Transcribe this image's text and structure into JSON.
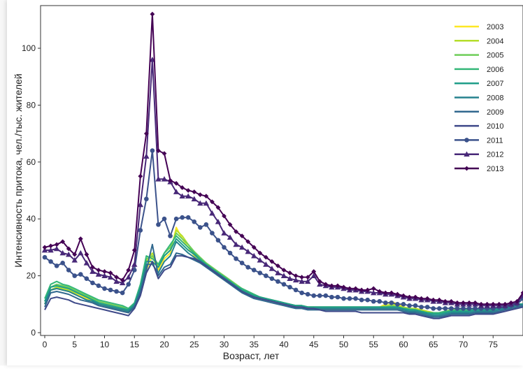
{
  "chart_data": {
    "type": "line",
    "title": "",
    "xlabel": "Возраст, лет",
    "ylabel": "Интенсивность притока, чел./тыс. жителей",
    "xlim": [
      0,
      80
    ],
    "ylim": [
      0,
      115
    ],
    "xticks": [
      0,
      5,
      10,
      15,
      20,
      25,
      30,
      35,
      40,
      45,
      50,
      55,
      60,
      65,
      70,
      75
    ],
    "yticks": [
      0,
      20,
      40,
      60,
      80,
      100
    ],
    "grid": false,
    "legend": "top-right",
    "x": [
      0,
      1,
      2,
      3,
      4,
      5,
      6,
      7,
      8,
      9,
      10,
      11,
      12,
      13,
      14,
      15,
      16,
      17,
      18,
      19,
      20,
      21,
      22,
      23,
      24,
      25,
      26,
      27,
      28,
      29,
      30,
      31,
      32,
      33,
      34,
      35,
      36,
      37,
      38,
      39,
      40,
      41,
      42,
      43,
      44,
      45,
      46,
      47,
      48,
      49,
      50,
      51,
      52,
      53,
      54,
      55,
      56,
      57,
      58,
      59,
      60,
      61,
      62,
      63,
      64,
      65,
      66,
      67,
      68,
      69,
      70,
      71,
      72,
      73,
      74,
      75,
      76,
      77,
      78,
      79,
      80
    ],
    "series": [
      {
        "name": "2003",
        "color": "#fde725",
        "marker": "none",
        "values": [
          10,
          15,
          15.5,
          15,
          14.5,
          13.5,
          13,
          12,
          11,
          10,
          9.5,
          9,
          8.5,
          8,
          7,
          9,
          14,
          22,
          27,
          22,
          26,
          28,
          37,
          33,
          30,
          27,
          25,
          23.5,
          22,
          20,
          19,
          17.5,
          16,
          15,
          14,
          13,
          12.5,
          12,
          11.5,
          11,
          10.5,
          10,
          9.5,
          9.5,
          9,
          9,
          8.5,
          8.5,
          8.5,
          8.5,
          8.5,
          8.5,
          8.5,
          8.5,
          8.5,
          8.5,
          9,
          10,
          11,
          10,
          9,
          8.5,
          8.5,
          8,
          7.5,
          7,
          7,
          7.5,
          8,
          8,
          8,
          8,
          8,
          8,
          8,
          8,
          8.5,
          9,
          9.5,
          10,
          10
        ]
      },
      {
        "name": "2004",
        "color": "#b5de2b",
        "marker": "none",
        "values": [
          10,
          15,
          16,
          15.5,
          15,
          14,
          13.5,
          12.5,
          11.5,
          10.5,
          10,
          9.5,
          9,
          8.5,
          7.5,
          9,
          15,
          25,
          28,
          23,
          27,
          29,
          36,
          34,
          31,
          28,
          26,
          24,
          22.5,
          21,
          19.5,
          18,
          16.5,
          15,
          14,
          13,
          12.5,
          12,
          11.5,
          11,
          10.5,
          10,
          9.5,
          9.5,
          9,
          9,
          9,
          9,
          9,
          9,
          9,
          9,
          9,
          9,
          9,
          9,
          9,
          9.5,
          10,
          9.5,
          9,
          8.5,
          8.5,
          8,
          7.5,
          7,
          7,
          7.5,
          8,
          8,
          8,
          8,
          8,
          8,
          8,
          8,
          8.5,
          9,
          9.5,
          10,
          10
        ]
      },
      {
        "name": "2005",
        "color": "#6ece58",
        "marker": "none",
        "values": [
          11,
          16,
          17,
          16.5,
          16,
          15,
          14,
          13,
          12,
          11,
          10.5,
          10,
          9.5,
          9,
          8,
          10,
          16,
          26,
          27,
          24,
          28,
          30,
          35,
          33,
          31,
          28.5,
          26.5,
          24.5,
          23,
          21.5,
          20,
          18.5,
          17,
          15.5,
          14.5,
          13.5,
          12.5,
          12,
          11.5,
          11,
          10.5,
          10,
          9.5,
          9.5,
          9,
          9,
          9,
          9,
          9,
          9,
          9,
          9,
          9,
          9,
          9,
          9,
          9,
          9,
          9.5,
          9,
          8.5,
          8.5,
          8,
          7.5,
          7,
          7,
          7,
          7.5,
          8,
          8,
          8,
          8,
          8,
          8,
          8,
          8,
          8.5,
          9,
          9.5,
          10,
          10
        ]
      },
      {
        "name": "2006",
        "color": "#35b779",
        "marker": "none",
        "values": [
          12,
          17,
          18,
          17,
          16.5,
          15.5,
          14.5,
          13.5,
          12.5,
          11.5,
          11,
          10.5,
          10,
          9.5,
          8.5,
          10.5,
          17,
          27,
          26,
          24,
          28,
          31,
          34,
          32,
          30,
          28,
          26,
          24,
          22.5,
          21,
          19.5,
          18,
          16.5,
          15.5,
          14.5,
          13.5,
          12.5,
          12,
          11.5,
          11,
          10.5,
          10,
          9.5,
          9.5,
          9,
          9,
          9,
          9,
          9,
          9,
          9,
          9,
          9,
          9,
          9,
          9,
          9,
          9,
          9,
          9,
          8.5,
          8,
          8,
          7.5,
          7,
          7,
          7,
          7.5,
          7.5,
          8,
          8,
          8,
          8,
          8,
          8,
          8.5,
          8.5,
          9,
          9.5,
          10,
          10
        ]
      },
      {
        "name": "2007",
        "color": "#1f9e89",
        "marker": "none",
        "values": [
          11,
          16,
          16.5,
          16,
          15.5,
          14.5,
          13.5,
          12.5,
          11.5,
          10.5,
          10,
          9.5,
          9,
          8.5,
          8,
          10,
          16,
          25,
          25,
          23,
          27,
          29,
          33,
          31,
          29,
          27.5,
          25.5,
          24,
          22.5,
          21,
          19.5,
          18,
          16.5,
          15,
          14,
          13,
          12.5,
          12,
          11.5,
          11,
          10.5,
          10,
          9.5,
          9.5,
          9,
          9,
          9,
          9,
          9,
          9,
          9,
          9,
          9,
          9,
          9,
          9,
          9,
          9,
          9,
          9,
          8.5,
          8,
          8,
          7.5,
          7,
          6.5,
          6.5,
          7,
          7.5,
          7.5,
          7.5,
          7.5,
          8,
          8,
          8,
          8,
          8.5,
          9,
          9.5,
          10,
          10
        ]
      },
      {
        "name": "2008",
        "color": "#26828e",
        "marker": "none",
        "values": [
          10,
          15,
          15.5,
          15,
          14.5,
          13.5,
          12.5,
          11.5,
          11,
          10,
          9.5,
          9,
          8.5,
          8,
          7.5,
          9.5,
          15,
          24,
          24,
          21,
          25,
          27,
          32,
          30,
          28,
          26.5,
          25,
          23.5,
          22,
          20.5,
          19,
          17.5,
          16,
          14.5,
          13.5,
          12.5,
          12,
          11.5,
          11,
          10.5,
          10,
          9.5,
          9,
          9,
          8.5,
          8.5,
          8.5,
          8.5,
          8.5,
          8.5,
          8.5,
          8.5,
          8.5,
          8.5,
          8.5,
          8.5,
          8.5,
          8.5,
          8.5,
          8.5,
          8,
          7.5,
          7.5,
          7,
          6.5,
          6,
          6,
          6.5,
          7,
          7,
          7,
          7,
          7.5,
          7.5,
          7.5,
          7.5,
          8,
          8.5,
          9,
          9.5,
          10
        ]
      },
      {
        "name": "2009",
        "color": "#31688e",
        "marker": "none",
        "values": [
          9,
          14,
          14.5,
          14,
          13.5,
          12.5,
          11.5,
          11,
          10.5,
          9.5,
          9,
          8.5,
          8,
          7.5,
          7,
          9,
          14,
          22,
          31,
          20,
          23,
          24,
          28,
          27.5,
          26.5,
          25.5,
          24.5,
          23,
          21.5,
          20,
          18.5,
          17,
          15.5,
          14,
          13,
          12,
          11.5,
          11,
          10.5,
          10,
          9.5,
          9,
          8.5,
          8.5,
          8,
          8,
          8,
          8,
          8,
          8,
          8,
          8,
          8,
          8,
          8,
          8,
          8,
          8,
          8,
          8,
          7.5,
          7,
          7,
          6.5,
          6,
          5.5,
          5.5,
          6,
          6.5,
          6.5,
          6.5,
          6.5,
          7,
          7,
          7,
          7,
          7.5,
          8,
          8.5,
          9,
          9.5
        ]
      },
      {
        "name": "2010",
        "color": "#3e4989",
        "marker": "none",
        "values": [
          8,
          12,
          12.5,
          12,
          11.5,
          10.5,
          10,
          9.5,
          9,
          8.5,
          8,
          7.5,
          7,
          6.5,
          6,
          8.5,
          13,
          21,
          25,
          19,
          22,
          23,
          27,
          27,
          26.5,
          26,
          25,
          23.5,
          22,
          20.5,
          19,
          17.5,
          16,
          14.5,
          13.5,
          12.5,
          12,
          11.5,
          11,
          10.5,
          10,
          9.5,
          9,
          9,
          8.5,
          8.5,
          8,
          7.5,
          7.5,
          7.5,
          7.5,
          7.5,
          7.5,
          7,
          7,
          7,
          7,
          7,
          7,
          7,
          7,
          6.5,
          6.5,
          6,
          5.5,
          5,
          5,
          5.5,
          6,
          6,
          6,
          6,
          6.5,
          6.5,
          6.5,
          6.5,
          7,
          7.5,
          8,
          8.5,
          9
        ]
      },
      {
        "name": "2011",
        "color": "#3b528b",
        "marker": "circle",
        "values": [
          26.5,
          25,
          23.5,
          24.5,
          22,
          20,
          20.5,
          19,
          17.5,
          16.5,
          15.5,
          15,
          14.5,
          14,
          17,
          22,
          36,
          47,
          64,
          38,
          40,
          34,
          40,
          40.5,
          40.5,
          39,
          37,
          38,
          35,
          32.5,
          30,
          28,
          26,
          24.5,
          23,
          22,
          21,
          20,
          19,
          18,
          17,
          16,
          15,
          14,
          13.5,
          13,
          13,
          13,
          12.5,
          12.5,
          12,
          12,
          12,
          11.5,
          11.5,
          11,
          11,
          10.5,
          10.5,
          10,
          10,
          9.5,
          9.5,
          9,
          9,
          8.5,
          8.5,
          8.5,
          8.5,
          8.5,
          8.5,
          8.5,
          8.5,
          8.5,
          8.5,
          8.5,
          9,
          9,
          9.5,
          10,
          12
        ]
      },
      {
        "name": "2012",
        "color": "#482878",
        "marker": "triangle",
        "values": [
          29,
          29,
          29.5,
          28,
          27.5,
          25.5,
          28,
          24.5,
          21.5,
          20.5,
          20,
          19.5,
          18,
          17.5,
          19.5,
          24,
          45,
          62,
          96,
          54,
          54,
          53,
          49.5,
          48,
          48,
          47,
          45.5,
          45.5,
          42,
          39,
          35,
          33.5,
          31,
          30,
          28.5,
          27,
          25.5,
          24,
          22.5,
          21,
          20,
          19,
          18.5,
          18,
          18,
          20,
          17,
          16.5,
          16,
          16,
          15.5,
          15,
          15,
          14.5,
          14.5,
          14,
          14,
          13.5,
          13.5,
          13,
          12.5,
          12,
          12,
          11.5,
          11.5,
          11,
          11,
          10.5,
          10.5,
          10,
          10,
          10,
          10,
          9.5,
          9.5,
          9.5,
          9.5,
          9.5,
          10,
          10.5,
          13
        ]
      },
      {
        "name": "2013",
        "color": "#440154",
        "marker": "diamond",
        "values": [
          30,
          30.5,
          31,
          32,
          29.5,
          27.5,
          33,
          27.5,
          23,
          22,
          21.5,
          21,
          19.5,
          18.5,
          22,
          29,
          55,
          70,
          112,
          64,
          63,
          53.5,
          52.5,
          51,
          50,
          49.5,
          48.5,
          48,
          46,
          44,
          41,
          38,
          35.5,
          34,
          32,
          30,
          28,
          26.5,
          25,
          23.5,
          22,
          21,
          20,
          19.5,
          19.5,
          21.5,
          18,
          17,
          16.5,
          16.5,
          16,
          15.5,
          15.5,
          15,
          15,
          15.5,
          14.5,
          14,
          14,
          13.5,
          13,
          12.5,
          12.5,
          12,
          12,
          11.5,
          11.5,
          11,
          11,
          10.5,
          10.5,
          10.5,
          10.5,
          10,
          10,
          10,
          10,
          10,
          10.5,
          11,
          14
        ]
      }
    ]
  }
}
